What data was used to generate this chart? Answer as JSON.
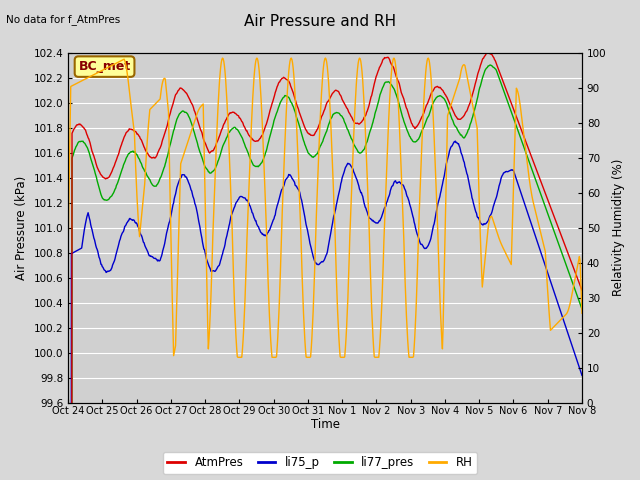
{
  "title": "Air Pressure and RH",
  "top_left_text": "No data for f_AtmPres",
  "box_label": "BC_met",
  "ylabel_left": "Air Pressure (kPa)",
  "ylabel_right": "Relativity Humidity (%)",
  "xlabel": "Time",
  "ylim_left": [
    99.6,
    102.4
  ],
  "ylim_right": [
    0,
    100
  ],
  "yticks_left": [
    99.6,
    99.8,
    100.0,
    100.2,
    100.4,
    100.6,
    100.8,
    101.0,
    101.2,
    101.4,
    101.6,
    101.8,
    102.0,
    102.2,
    102.4
  ],
  "yticks_right": [
    0,
    10,
    20,
    30,
    40,
    50,
    60,
    70,
    80,
    90,
    100
  ],
  "xtick_labels": [
    "Oct 24",
    "Oct 25",
    "Oct 26",
    "Oct 27",
    "Oct 28",
    "Oct 29",
    "Oct 30",
    "Oct 31",
    "Nov 1",
    "Nov 2",
    "Nov 3",
    "Nov 4",
    "Nov 5",
    "Nov 6",
    "Nov 7",
    "Nov 8"
  ],
  "colors": {
    "AtmPres": "#dd0000",
    "li75_p": "#0000cc",
    "li77_pres": "#00aa00",
    "RH": "#ffaa00"
  },
  "background_color": "#d8d8d8",
  "plot_bg_color": "#d0d0d0",
  "grid_color": "#ffffff",
  "box_facecolor": "#ffff99",
  "box_edgecolor": "#996600",
  "box_textcolor": "#880000"
}
